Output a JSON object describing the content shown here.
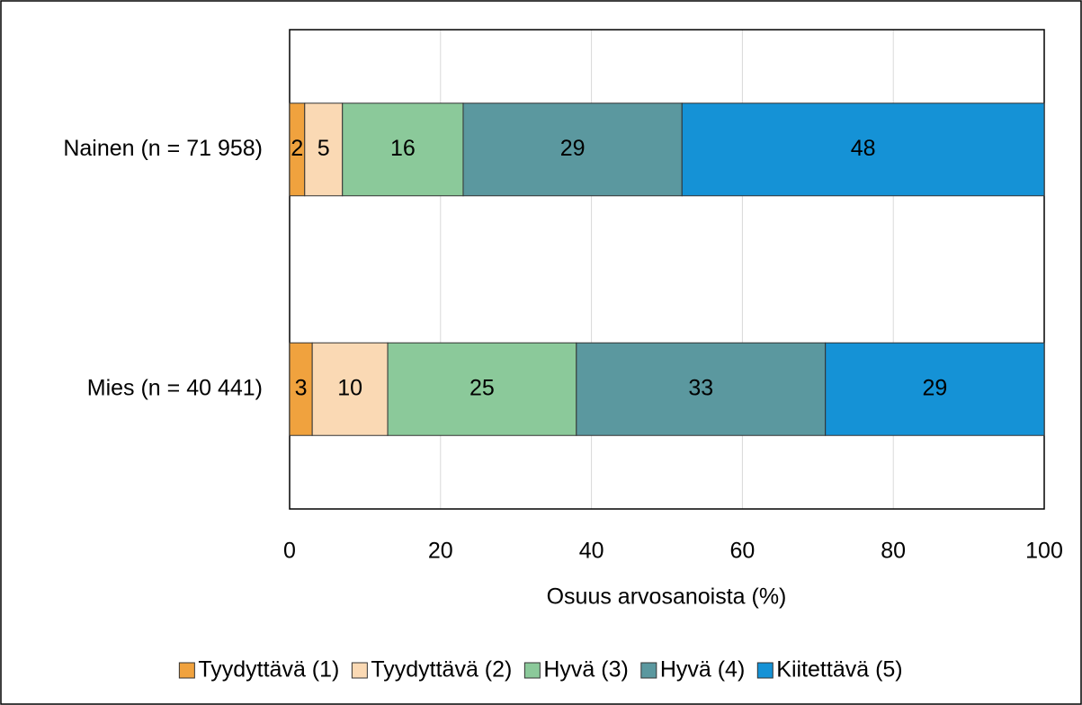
{
  "chart_data": {
    "type": "stacked_barh",
    "categories": [
      "Nainen (n = 71 958)",
      "Mies (n = 40 441)"
    ],
    "series": [
      {
        "name": "Tyydyttävä (1)",
        "color": "#f0a23e",
        "values": [
          2,
          3
        ]
      },
      {
        "name": "Tyydyttävä (2)",
        "color": "#fad9b4",
        "values": [
          5,
          10
        ]
      },
      {
        "name": "Hyvä (3)",
        "color": "#8bc99a",
        "values": [
          16,
          25
        ]
      },
      {
        "name": "Hyvä (4)",
        "color": "#5b989f",
        "values": [
          29,
          33
        ]
      },
      {
        "name": "Kiitettävä (5)",
        "color": "#1592d6",
        "values": [
          48,
          29
        ]
      }
    ],
    "x_label": "Osuus arvosanoista (%)",
    "xlim": [
      0,
      100
    ],
    "xticks": [
      0,
      20,
      40,
      60,
      80,
      100
    ],
    "grid": true,
    "legend": "bottom"
  }
}
